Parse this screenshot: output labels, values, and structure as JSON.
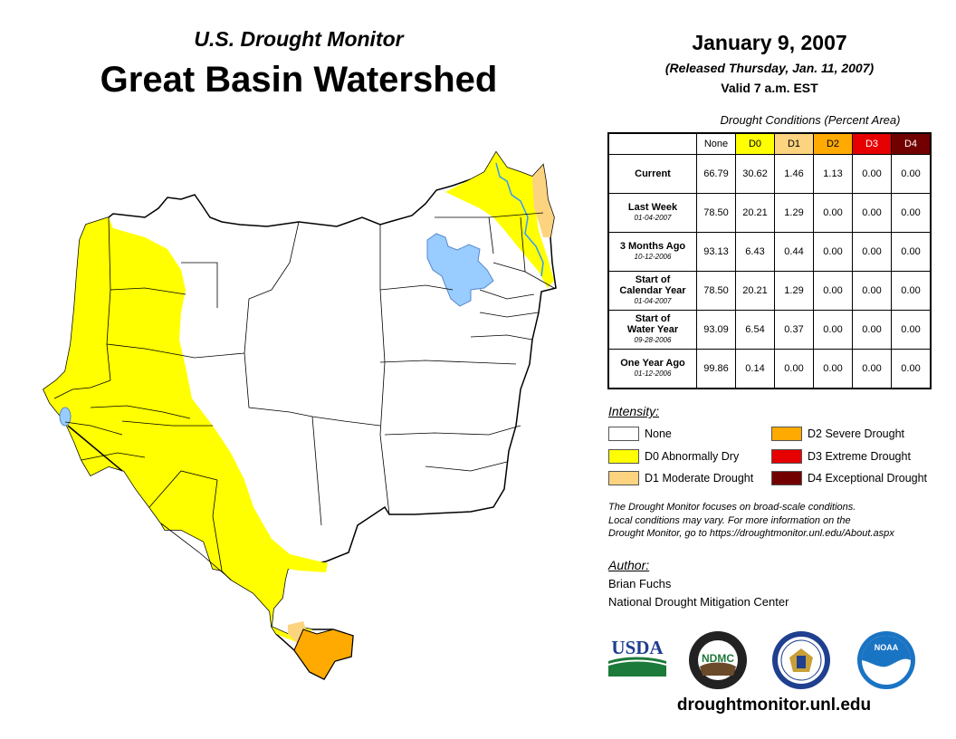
{
  "header": {
    "subtitle": "U.S. Drought Monitor",
    "title": "Great Basin Watershed",
    "date": "January 9, 2007",
    "released": "(Released Thursday, Jan. 11, 2007)",
    "valid": "Valid 7 a.m. EST"
  },
  "table": {
    "title": "Drought Conditions (Percent Area)",
    "columns": [
      "None",
      "D0",
      "D1",
      "D2",
      "D3",
      "D4"
    ],
    "rows": [
      {
        "label": "Current",
        "label2": "",
        "date": "",
        "values": [
          "66.79",
          "30.62",
          "1.46",
          "1.13",
          "0.00",
          "0.00"
        ]
      },
      {
        "label": "Last Week",
        "label2": "",
        "date": "01-04-2007",
        "values": [
          "78.50",
          "20.21",
          "1.29",
          "0.00",
          "0.00",
          "0.00"
        ]
      },
      {
        "label": "3 Months Ago",
        "label2": "",
        "date": "10-12-2006",
        "values": [
          "93.13",
          "6.43",
          "0.44",
          "0.00",
          "0.00",
          "0.00"
        ]
      },
      {
        "label": "Start of",
        "label2": "Calendar Year",
        "date": "01-04-2007",
        "values": [
          "78.50",
          "20.21",
          "1.29",
          "0.00",
          "0.00",
          "0.00"
        ]
      },
      {
        "label": "Start of",
        "label2": "Water Year",
        "date": "09-28-2006",
        "values": [
          "93.09",
          "6.54",
          "0.37",
          "0.00",
          "0.00",
          "0.00"
        ]
      },
      {
        "label": "One Year Ago",
        "label2": "",
        "date": "01-12-2006",
        "values": [
          "99.86",
          "0.14",
          "0.00",
          "0.00",
          "0.00",
          "0.00"
        ]
      }
    ]
  },
  "legend": {
    "title": "Intensity:",
    "items": [
      {
        "label": "None",
        "color": "#ffffff"
      },
      {
        "label": "D0 Abnormally Dry",
        "color": "#ffff00"
      },
      {
        "label": "D1 Moderate Drought",
        "color": "#fcd37f"
      },
      {
        "label": "D2 Severe Drought",
        "color": "#ffaa00"
      },
      {
        "label": "D3 Extreme Drought",
        "color": "#e60000"
      },
      {
        "label": "D4 Exceptional Drought",
        "color": "#730000"
      }
    ]
  },
  "note": {
    "line1": "The Drought Monitor focuses on broad-scale conditions.",
    "line2": "Local conditions may vary. For more information on the",
    "line3": "Drought Monitor, go to https://droughtmonitor.unl.edu/About.aspx"
  },
  "author": {
    "heading": "Author:",
    "name": "Brian Fuchs",
    "org": "National Drought Mitigation Center"
  },
  "logos": {
    "usda": "USDA",
    "ndmc": "NDMC",
    "noaa": "NOAA"
  },
  "website": "droughtmonitor.unl.edu",
  "colors": {
    "none": "#ffffff",
    "d0": "#ffff00",
    "d1": "#fcd37f",
    "d2": "#ffaa00",
    "d3": "#e60000",
    "d4": "#730000",
    "lake": "#99ccff"
  }
}
